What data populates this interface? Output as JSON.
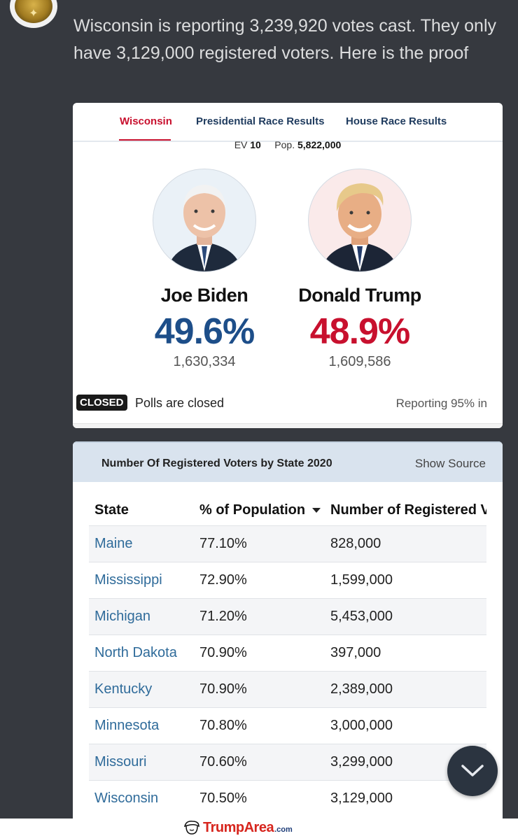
{
  "post": {
    "text": "Wisconsin is reporting 3,239,920 votes cast. They only have 3,129,000 registered voters. Here is the proof"
  },
  "results_card": {
    "tabs": [
      {
        "label": "Wisconsin",
        "active": true
      },
      {
        "label": "Presidential Race Results",
        "active": false
      },
      {
        "label": "House Race Results",
        "active": false
      }
    ],
    "ev_label": "EV",
    "ev_value": "10",
    "pop_label": "Pop.",
    "pop_value": "5,822,000",
    "candidates": [
      {
        "name": "Joe Biden",
        "pct": "49.6%",
        "votes": "1,630,334",
        "party_color": "#1d4e89"
      },
      {
        "name": "Donald Trump",
        "pct": "48.9%",
        "votes": "1,609,586",
        "party_color": "#c8102e"
      }
    ],
    "closed_badge": "CLOSED",
    "polls_text": "Polls are closed",
    "reporting_text": "Reporting 95% in"
  },
  "voters_card": {
    "title": "Number Of Registered Voters by State 2020",
    "show_source": "Show Source",
    "headers": [
      "State",
      "% of Population",
      "Number of Registered V"
    ],
    "rows": [
      {
        "state": "Maine",
        "pct": "77.10%",
        "number": "828,000"
      },
      {
        "state": "Mississippi",
        "pct": "72.90%",
        "number": "1,599,000"
      },
      {
        "state": "Michigan",
        "pct": "71.20%",
        "number": "5,453,000"
      },
      {
        "state": "North Dakota",
        "pct": "70.90%",
        "number": "397,000"
      },
      {
        "state": "Kentucky",
        "pct": "70.90%",
        "number": "2,389,000"
      },
      {
        "state": "Minnesota",
        "pct": "70.80%",
        "number": "3,000,000"
      },
      {
        "state": "Missouri",
        "pct": "70.60%",
        "number": "3,299,000"
      },
      {
        "state": "Wisconsin",
        "pct": "70.50%",
        "number": "3,129,000"
      }
    ]
  },
  "watermark": {
    "brand": "TrumpArea",
    "suffix": ".com"
  },
  "colors": {
    "background": "#36393f",
    "dem_blue": "#1d4e89",
    "rep_red": "#c8102e"
  }
}
